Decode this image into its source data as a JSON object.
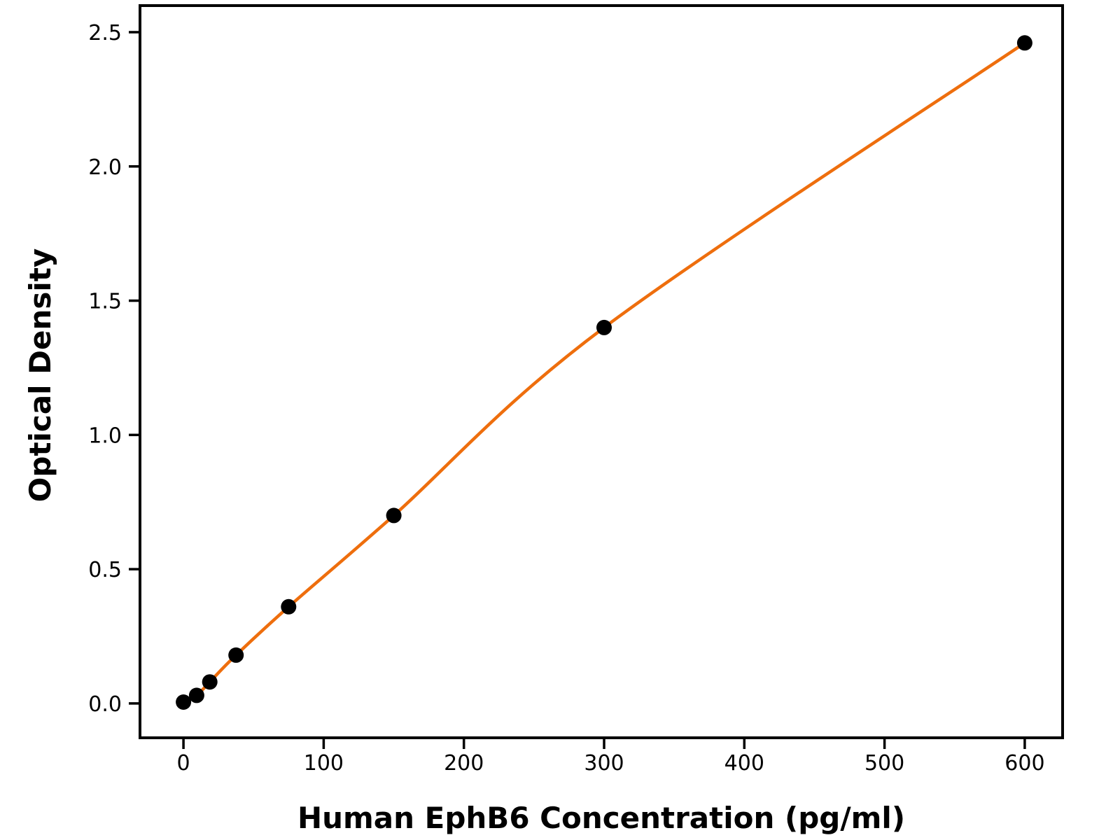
{
  "chart_data": {
    "type": "line",
    "title": "",
    "xlabel": "Human EphB6 Concentration (pg/ml)",
    "ylabel": "Optical Density",
    "x": [
      0,
      9.375,
      18.75,
      37.5,
      75,
      150,
      300,
      600
    ],
    "y": [
      0.005,
      0.03,
      0.08,
      0.18,
      0.36,
      0.7,
      1.4,
      2.46
    ],
    "xlim": [
      -31,
      627
    ],
    "ylim": [
      -0.128,
      2.599
    ],
    "xticks": [
      0,
      100,
      200,
      300,
      400,
      500,
      600
    ],
    "xtick_labels": [
      "0",
      "100",
      "200",
      "300",
      "400",
      "500",
      "600"
    ],
    "yticks": [
      0,
      0.5,
      1,
      1.5,
      2,
      2.5
    ],
    "ytick_labels": [
      "0.0",
      "0.5",
      "1.0",
      "1.5",
      "2.0",
      "2.5"
    ],
    "grid": false,
    "legend": "none",
    "line_color": "#ee6e0d",
    "marker_color": "#000000",
    "marker_shape": "circle",
    "spine_color": "#000000",
    "background_color": "#ffffff"
  }
}
